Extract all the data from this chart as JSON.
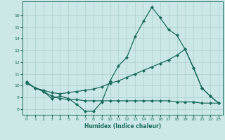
{
  "xlabel": "Humidex (Indice chaleur)",
  "background_color": "#cce8e6",
  "grid_color": "#aacfcc",
  "line_color": "#1a6b5a",
  "xlim": [
    -0.5,
    23.5
  ],
  "ylim": [
    7.5,
    17.2
  ],
  "yticks": [
    8,
    9,
    10,
    11,
    12,
    13,
    14,
    15,
    16
  ],
  "xticks": [
    0,
    1,
    2,
    3,
    4,
    5,
    6,
    7,
    8,
    9,
    10,
    11,
    12,
    13,
    14,
    15,
    16,
    17,
    18,
    19,
    20,
    21,
    22,
    23
  ],
  "line1_x": [
    0,
    1,
    2,
    3,
    4,
    5,
    6,
    7,
    8,
    9,
    10,
    11,
    12,
    13,
    14,
    15,
    16,
    17,
    18,
    19,
    20,
    21,
    22,
    23
  ],
  "line1_y": [
    10.3,
    9.8,
    9.5,
    8.9,
    9.1,
    8.9,
    8.4,
    7.8,
    7.8,
    8.6,
    10.4,
    11.7,
    12.4,
    14.2,
    15.5,
    16.7,
    15.8,
    14.8,
    14.3,
    13.1,
    11.5,
    9.8,
    9.1,
    8.5
  ],
  "line2_x": [
    0,
    1,
    2,
    3,
    4,
    5,
    6,
    7,
    8,
    9,
    10,
    11,
    12,
    13,
    14,
    15,
    16,
    17,
    18,
    19,
    20,
    21,
    22,
    23
  ],
  "line2_y": [
    10.3,
    9.8,
    9.6,
    9.4,
    9.3,
    9.4,
    9.5,
    9.6,
    9.7,
    9.9,
    10.2,
    10.4,
    10.7,
    11.0,
    11.3,
    11.6,
    11.9,
    12.2,
    12.6,
    13.1,
    11.5,
    9.8,
    9.1,
    8.5
  ],
  "line3_x": [
    0,
    1,
    2,
    3,
    4,
    5,
    6,
    7,
    8,
    9,
    10,
    11,
    12,
    13,
    14,
    15,
    16,
    17,
    18,
    19,
    20,
    21,
    22,
    23
  ],
  "line3_y": [
    10.2,
    9.8,
    9.5,
    9.1,
    8.9,
    8.8,
    8.8,
    8.7,
    8.7,
    8.7,
    8.7,
    8.7,
    8.7,
    8.7,
    8.7,
    8.7,
    8.7,
    8.7,
    8.6,
    8.6,
    8.6,
    8.5,
    8.5,
    8.5
  ]
}
